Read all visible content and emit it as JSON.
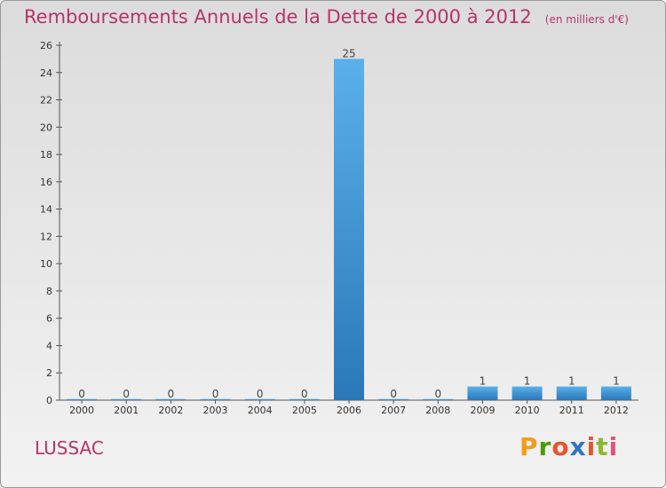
{
  "header": {
    "title": "Remboursements Annuels de la Dette de 2000 à 2012",
    "unit": "(en milliers d'€)"
  },
  "footer": {
    "commune": "LUSSAC",
    "brand": {
      "letters": [
        "P",
        "r",
        "o",
        "x",
        "i",
        "t",
        "i"
      ],
      "colors": [
        "#f39b1b",
        "#4e9a06",
        "#e8542b",
        "#2e74c9",
        "#e8542b",
        "#8ab832",
        "#e94f7c"
      ]
    }
  },
  "chart_data": {
    "type": "bar",
    "title": "Remboursements Annuels de la Dette de 2000 à 2012",
    "xlabel": "",
    "ylabel": "(en milliers d'€)",
    "categories": [
      "2000",
      "2001",
      "2002",
      "2003",
      "2004",
      "2005",
      "2006",
      "2007",
      "2008",
      "2009",
      "2010",
      "2011",
      "2012"
    ],
    "values": [
      0,
      0,
      0,
      0,
      0,
      0,
      25,
      0,
      0,
      1,
      1,
      1,
      1
    ],
    "labels": [
      "0",
      "0",
      "0",
      "0",
      "0",
      "0",
      "25",
      "0",
      "0",
      "1",
      "1",
      "1",
      "1"
    ],
    "ylim": [
      0,
      26
    ],
    "yticks": [
      0,
      2,
      4,
      6,
      8,
      10,
      12,
      14,
      16,
      18,
      20,
      22,
      24,
      26
    ],
    "grid": false,
    "bar_color": "#3d8fd6"
  }
}
